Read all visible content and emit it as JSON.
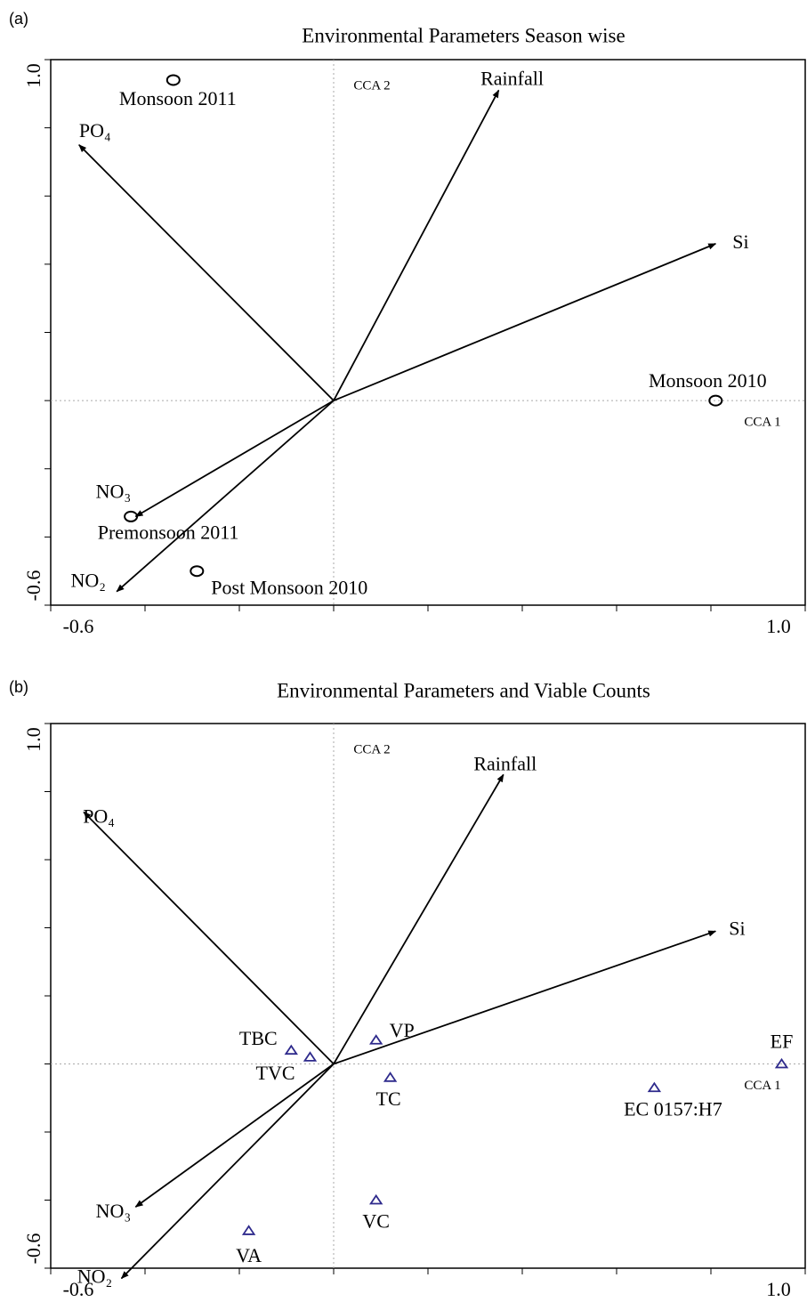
{
  "chart_data": [
    {
      "type": "biplot",
      "panel": "(a)",
      "title": "Environmental Parameters Season wise",
      "xlabel": "CCA 1",
      "ylabel": "CCA 2",
      "xlim": [
        -0.6,
        1
      ],
      "ylim": [
        -0.6,
        1
      ],
      "xticks": [
        -0.6,
        {
          "value": 1,
          "label": "1.0"
        }
      ],
      "xminorticks": [
        -0.4,
        -0.2,
        0,
        0.2,
        0.4,
        0.6,
        0.8
      ],
      "yticks": [
        -0.6,
        {
          "value": 1,
          "label": "1.0"
        }
      ],
      "yminorticks": [
        -0.4,
        -0.2,
        0,
        0.2,
        0.4,
        0.6,
        0.8
      ],
      "vectors": [
        {
          "name": "Rainfall",
          "x": 0.35,
          "y": 0.91
        },
        {
          "name": "Si",
          "x": 0.81,
          "y": 0.46
        },
        {
          "name": "PO₄",
          "x": -0.54,
          "y": 0.75
        },
        {
          "name": "NO₃",
          "x": -0.42,
          "y": -0.34
        },
        {
          "name": "NO₂",
          "x": -0.46,
          "y": -0.56
        }
      ],
      "marker": "circle",
      "marker_color": "#000000",
      "points": [
        {
          "name": "Monsoon 2011",
          "x": -0.34,
          "y": 0.94
        },
        {
          "name": "Monsoon 2010",
          "x": 0.81,
          "y": 0
        },
        {
          "name": "Premonsoon 2011",
          "x": -0.43,
          "y": -0.34
        },
        {
          "name": "Post Monsoon 2010",
          "x": -0.29,
          "y": -0.5
        }
      ]
    },
    {
      "type": "biplot",
      "panel": "(b)",
      "title": "Environmental Parameters and Viable Counts",
      "xlabel": "CCA 1",
      "ylabel": "CCA 2",
      "xlim": [
        -0.6,
        1
      ],
      "ylim": [
        -0.6,
        1
      ],
      "xticks": [
        -0.6,
        {
          "value": 1,
          "label": "1.0"
        }
      ],
      "xminorticks": [
        -0.4,
        -0.2,
        0,
        0.2,
        0.4,
        0.6,
        0.8
      ],
      "yticks": [
        -0.6,
        {
          "value": 1,
          "label": "1.0"
        }
      ],
      "yminorticks": [
        -0.4,
        -0.2,
        0,
        0.2,
        0.4,
        0.6,
        0.8
      ],
      "vectors": [
        {
          "name": "Rainfall",
          "x": 0.36,
          "y": 0.85
        },
        {
          "name": "Si",
          "x": 0.81,
          "y": 0.39
        },
        {
          "name": "PO₄",
          "x": -0.53,
          "y": 0.74
        },
        {
          "name": "NO₃",
          "x": -0.42,
          "y": -0.42
        },
        {
          "name": "NO₂",
          "x": -0.45,
          "y": -0.63
        }
      ],
      "marker": "triangle",
      "marker_color": "#2e2a8c",
      "points": [
        {
          "name": "VP",
          "x": 0.09,
          "y": 0.07
        },
        {
          "name": "TBC",
          "x": -0.09,
          "y": 0.04
        },
        {
          "name": "TVC",
          "x": -0.05,
          "y": 0.02
        },
        {
          "name": "TC",
          "x": 0.12,
          "y": -0.04
        },
        {
          "name": "EC 0157:H7",
          "x": 0.68,
          "y": -0.07
        },
        {
          "name": "EF",
          "x": 0.95,
          "y": 0
        },
        {
          "name": "VC",
          "x": 0.09,
          "y": -0.4
        },
        {
          "name": "VA",
          "x": -0.18,
          "y": -0.49
        }
      ]
    }
  ]
}
